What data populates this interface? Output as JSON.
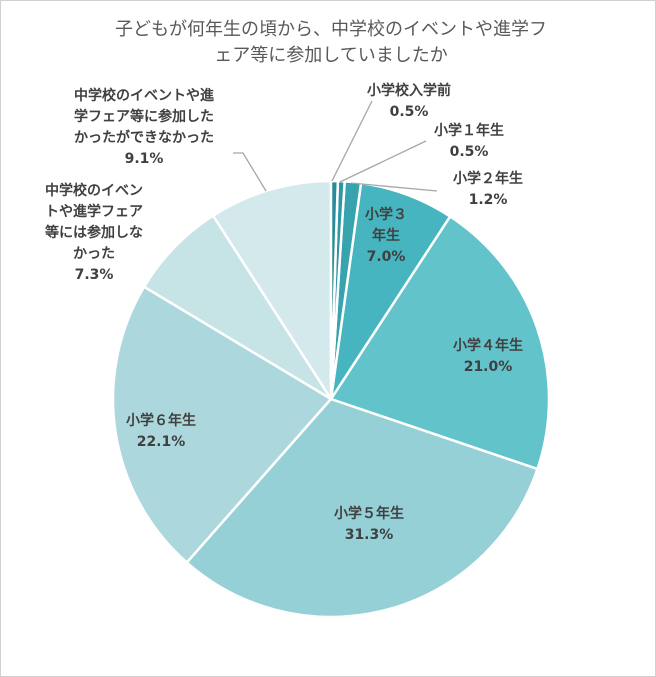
{
  "chart_data": {
    "type": "pie",
    "title": "子どもが何年生の頃から、中学校のイベントや進学フェア等に参加していましたか",
    "categories": [
      "小学校入学前",
      "小学１年生",
      "小学２年生",
      "小学３年生",
      "小学４年生",
      "小学５年生",
      "小学６年生",
      "中学校のイベントや進学フェア等には参加しなかった",
      "中学校のイベントや進学フェア等に参加したかったができなかった"
    ],
    "values": [
      0.5,
      0.5,
      1.2,
      7.0,
      21.0,
      31.3,
      22.1,
      7.3,
      9.1
    ],
    "value_labels": [
      "0.5%",
      "0.5%",
      "1.2%",
      "7.0%",
      "21.0%",
      "31.3%",
      "22.1%",
      "7.3%",
      "9.1%"
    ],
    "colors": [
      "#2a8c99",
      "#2f97a3",
      "#36a3ae",
      "#46b5bf",
      "#63c3ca",
      "#95d0d6",
      "#acd8dd",
      "#c6e3e6",
      "#d3e9eb"
    ]
  }
}
